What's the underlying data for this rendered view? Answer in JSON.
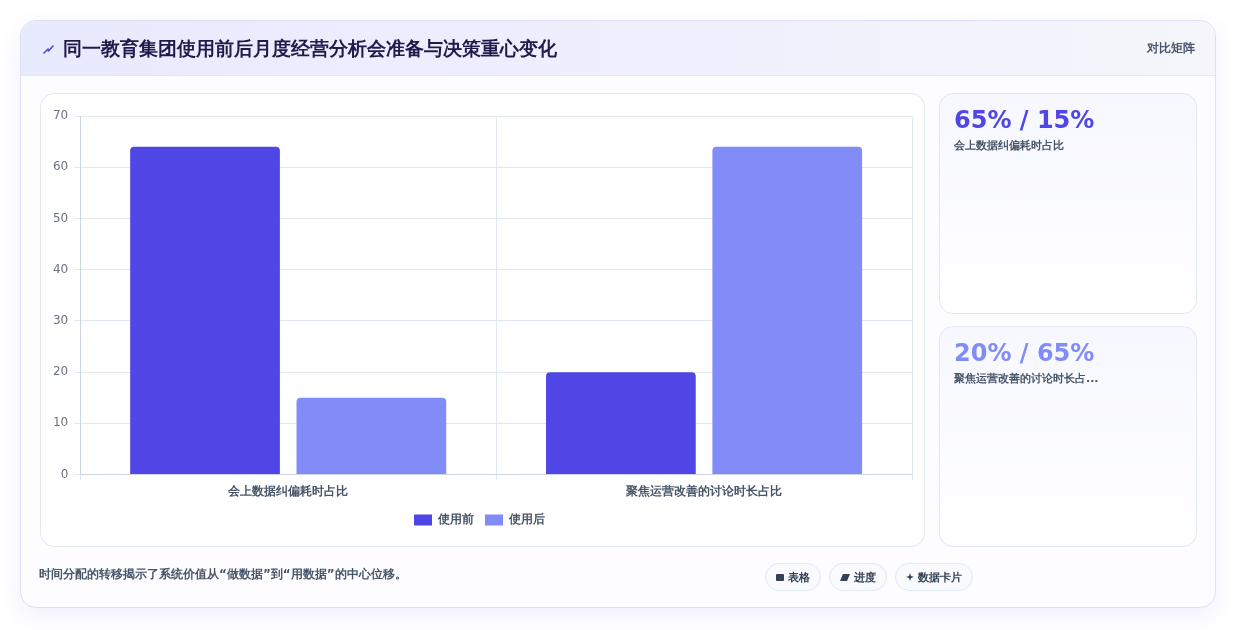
{
  "chart_data": {
    "type": "bar",
    "title": "同一教育集团使用前后月度经营分析会准备与决策重心变化",
    "categories": [
      "会上数据纠偏耗时占比",
      "聚焦运营改善的讨论时长占比"
    ],
    "series": [
      {
        "name": "使用前",
        "color": "#4f46e5",
        "values": [
          64,
          20
        ]
      },
      {
        "name": "使用后",
        "color": "#818cf8",
        "values": [
          15,
          64
        ]
      }
    ],
    "ylim": [
      0,
      70
    ],
    "yticks": [
      0,
      10,
      20,
      30,
      40,
      50,
      60,
      70
    ],
    "grid": true,
    "legend": "bottom",
    "annotations": [
      "对比矩阵",
      "65% / 15%",
      "会上数据纠偏耗时占比",
      "20% / 65%",
      "聚焦运营改善的讨论时长占...",
      "时间分配的转移揭示了系统价值从“做数据”到“用数据”的中心位移。",
      "表格",
      "进度",
      "数据卡片"
    ]
  }
}
